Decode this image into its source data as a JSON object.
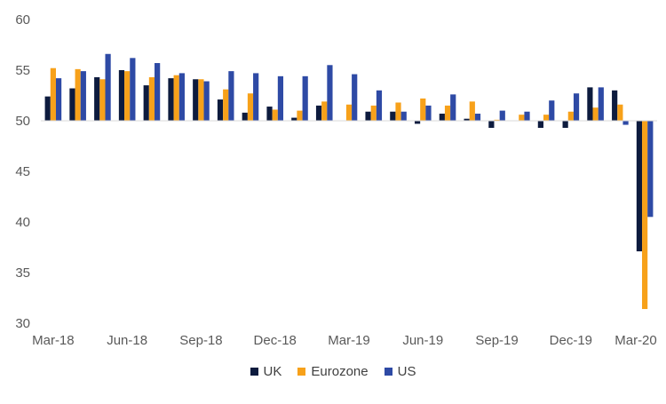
{
  "chart_data": {
    "type": "bar",
    "categories": [
      "Mar-18",
      "Apr-18",
      "May-18",
      "Jun-18",
      "Jul-18",
      "Aug-18",
      "Sep-18",
      "Oct-18",
      "Nov-18",
      "Dec-18",
      "Jan-19",
      "Feb-19",
      "Mar-19",
      "Apr-19",
      "May-19",
      "Jun-19",
      "Jul-19",
      "Aug-19",
      "Sep-19",
      "Oct-19",
      "Nov-19",
      "Dec-19",
      "Jan-20",
      "Feb-20",
      "Mar-20"
    ],
    "x_tick_labels": [
      "Mar-18",
      "Jun-18",
      "Sep-18",
      "Dec-18",
      "Mar-19",
      "Jun-19",
      "Sep-19",
      "Dec-19",
      "Mar-20"
    ],
    "ylim": [
      30,
      60
    ],
    "baseline": 50,
    "y_ticks": [
      30,
      35,
      40,
      45,
      50,
      55,
      60
    ],
    "grid": false,
    "legend_position": "bottom",
    "series": [
      {
        "name": "UK",
        "color": "#0d1b3e",
        "values": [
          52.4,
          53.2,
          54.3,
          55.0,
          53.5,
          54.2,
          54.1,
          52.1,
          50.8,
          51.4,
          50.3,
          51.5,
          null,
          50.9,
          50.9,
          49.7,
          50.7,
          50.2,
          49.3,
          null,
          49.3,
          49.3,
          53.3,
          53.0,
          37.1
        ]
      },
      {
        "name": "Eurozone",
        "color": "#f7a11a",
        "values": [
          55.2,
          55.1,
          54.1,
          54.9,
          54.3,
          54.5,
          54.1,
          53.1,
          52.7,
          51.1,
          51.0,
          51.9,
          51.6,
          51.5,
          51.8,
          52.2,
          51.5,
          51.9,
          50.1,
          50.6,
          50.6,
          50.9,
          51.3,
          51.6,
          31.4
        ]
      },
      {
        "name": "US",
        "color": "#2e4aa5",
        "values": [
          54.2,
          54.9,
          56.6,
          56.2,
          55.7,
          54.7,
          53.9,
          54.9,
          54.7,
          54.4,
          54.4,
          55.5,
          54.6,
          53.0,
          50.9,
          51.5,
          52.6,
          50.7,
          51.0,
          50.9,
          52.0,
          52.7,
          53.3,
          49.6,
          40.5
        ]
      }
    ]
  }
}
